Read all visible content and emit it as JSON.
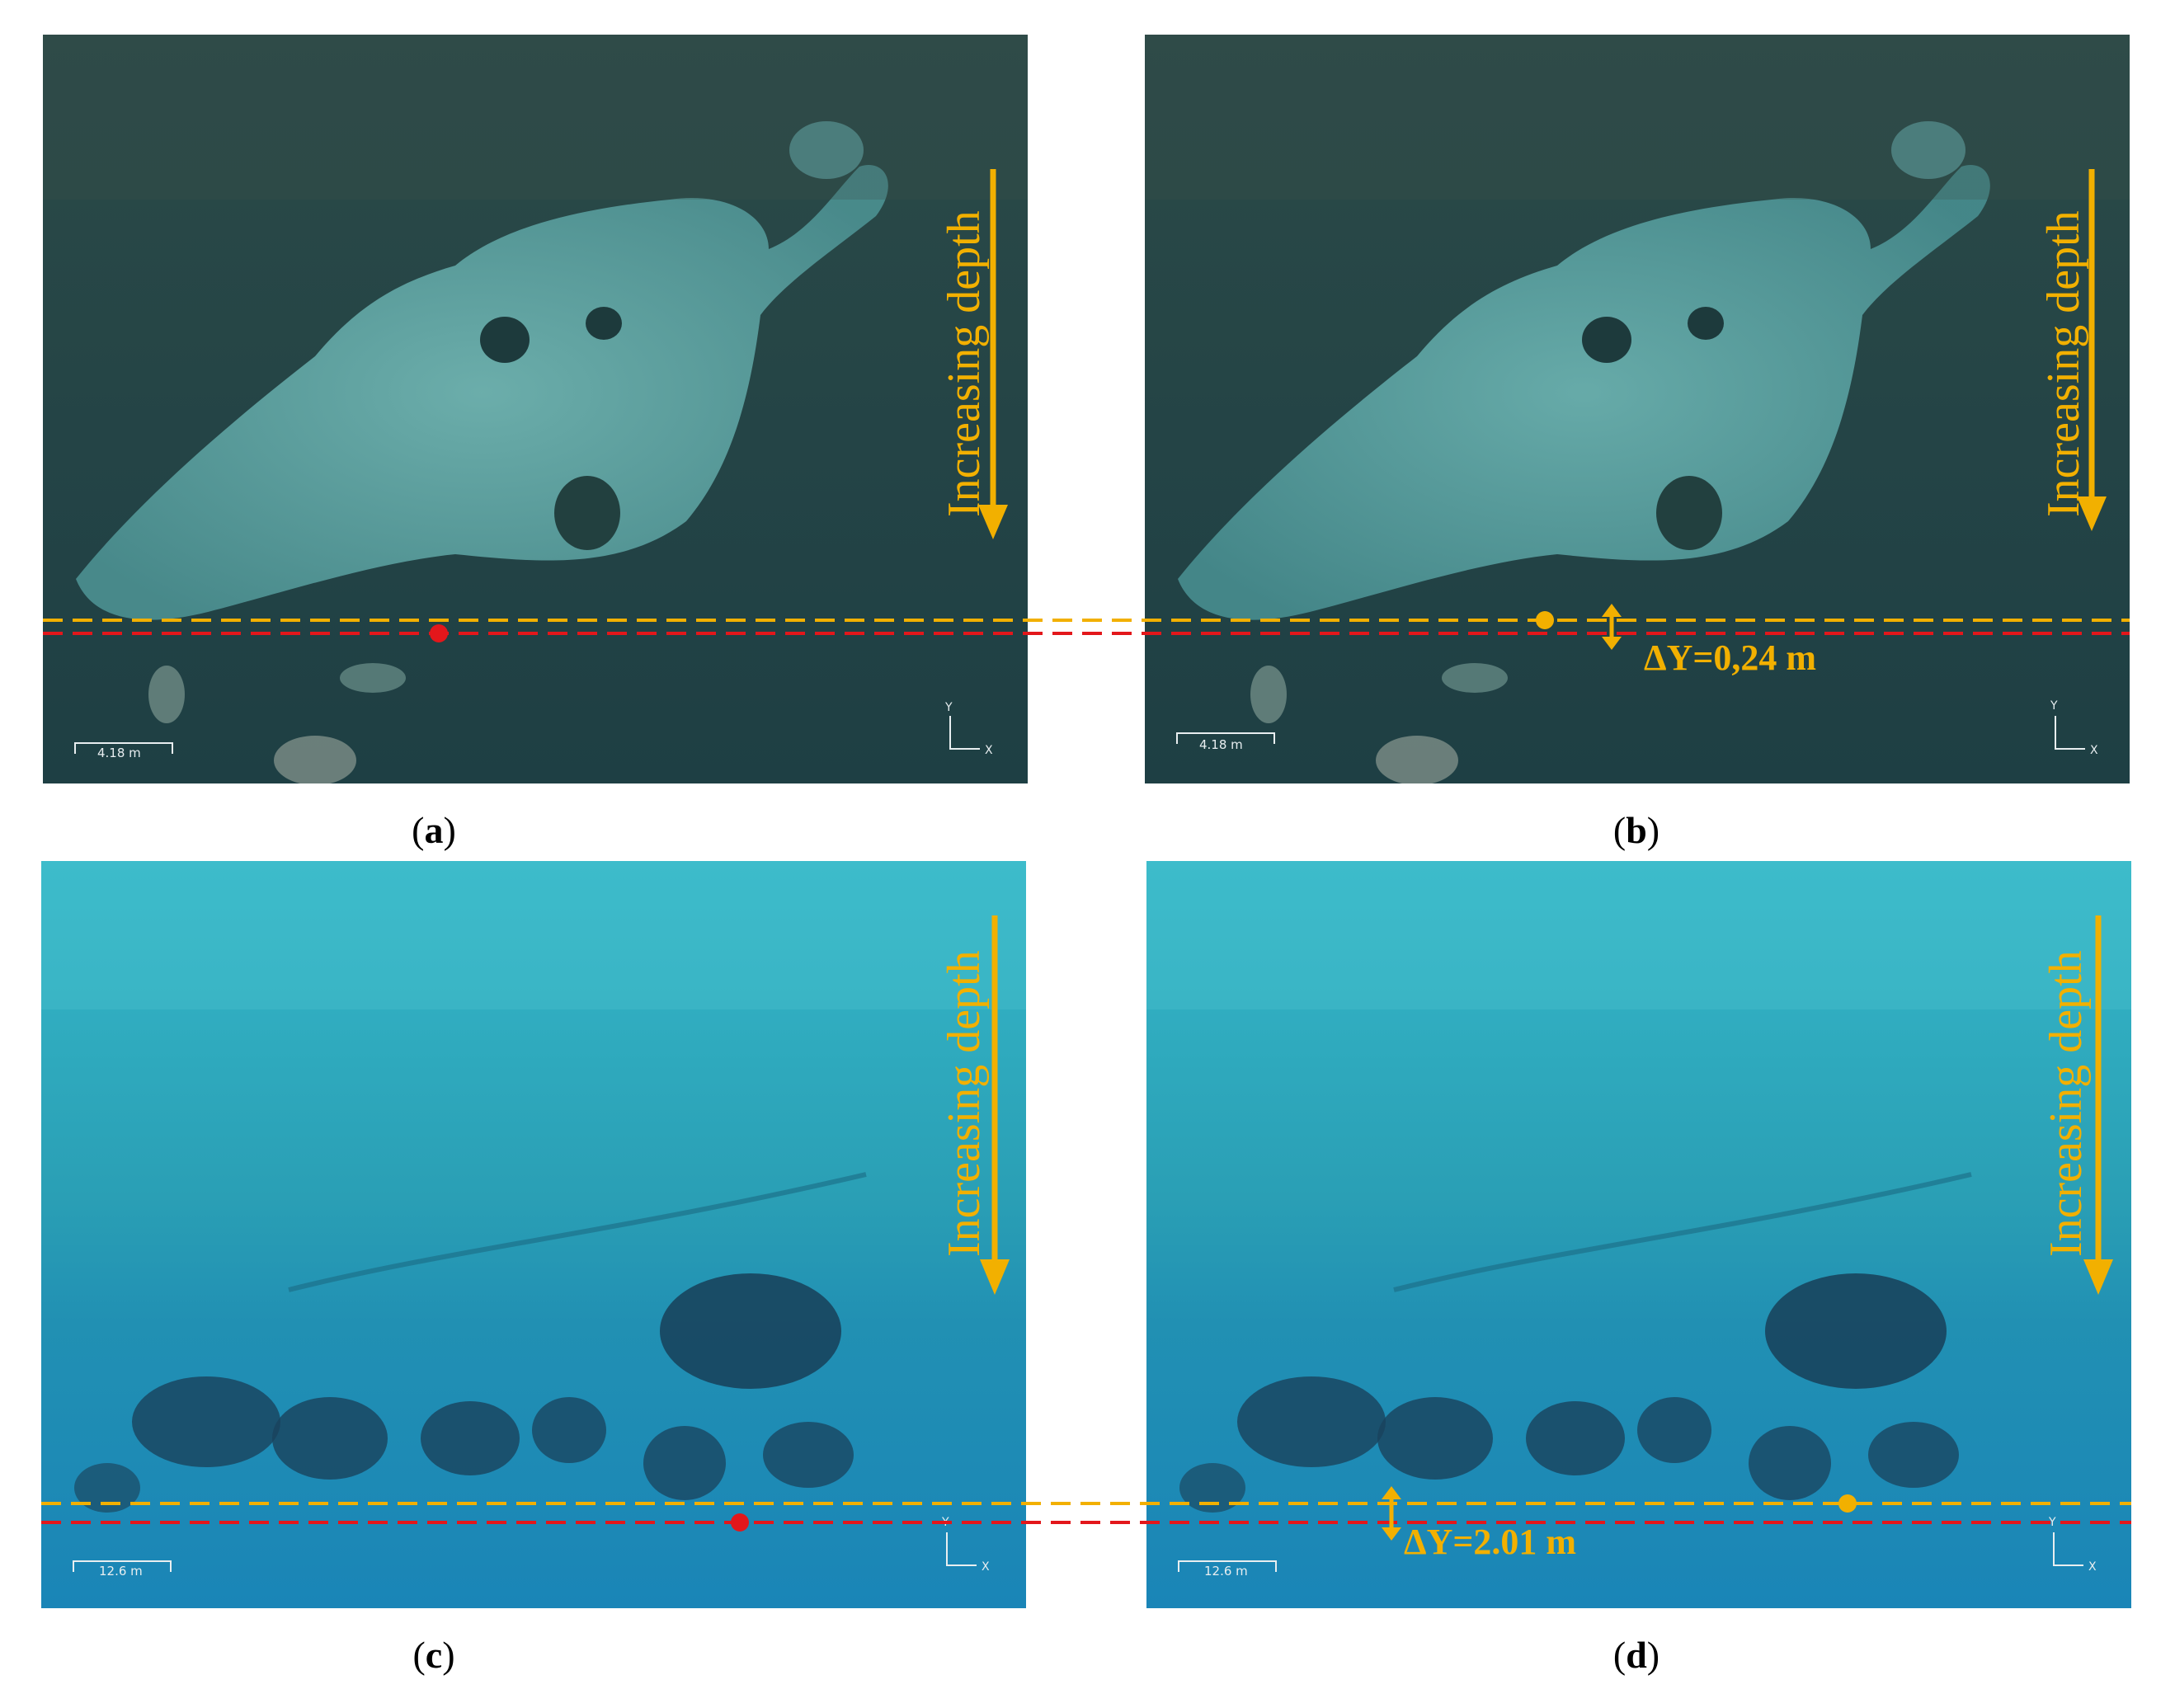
{
  "panels": {
    "a": {
      "caption_letter": "a",
      "depth_label": "Increasing depth",
      "scale_label": "4.18 m",
      "axis_y": "Y",
      "axis_x": "X"
    },
    "b": {
      "caption_letter": "b",
      "depth_label": "Increasing depth",
      "scale_label": "4.18 m",
      "axis_y": "Y",
      "axis_x": "X",
      "delta_label": "ΔY=0,24 m"
    },
    "c": {
      "caption_letter": "c",
      "depth_label": "Increasing depth",
      "scale_label": "12.6 m",
      "axis_y": "Y",
      "axis_x": "X"
    },
    "d": {
      "caption_letter": "d",
      "depth_label": "Increasing depth",
      "scale_label": "12.6 m",
      "axis_y": "Y",
      "axis_x": "X",
      "delta_label": "ΔY=2.01 m"
    }
  },
  "colors": {
    "annotation_orange": "#f2b000",
    "reference_red": "#e3171b",
    "water_dark": "#1d4a52",
    "water_light_top": "#2aa9bd",
    "water_deep": "#1a86b8"
  },
  "icons": {
    "depth_arrow": "arrow-down-icon",
    "delta_arrow": "double-arrow-vertical-icon",
    "marker_red": "red-dot-marker",
    "marker_orange": "orange-dot-marker",
    "axis": "xy-axis-icon"
  }
}
